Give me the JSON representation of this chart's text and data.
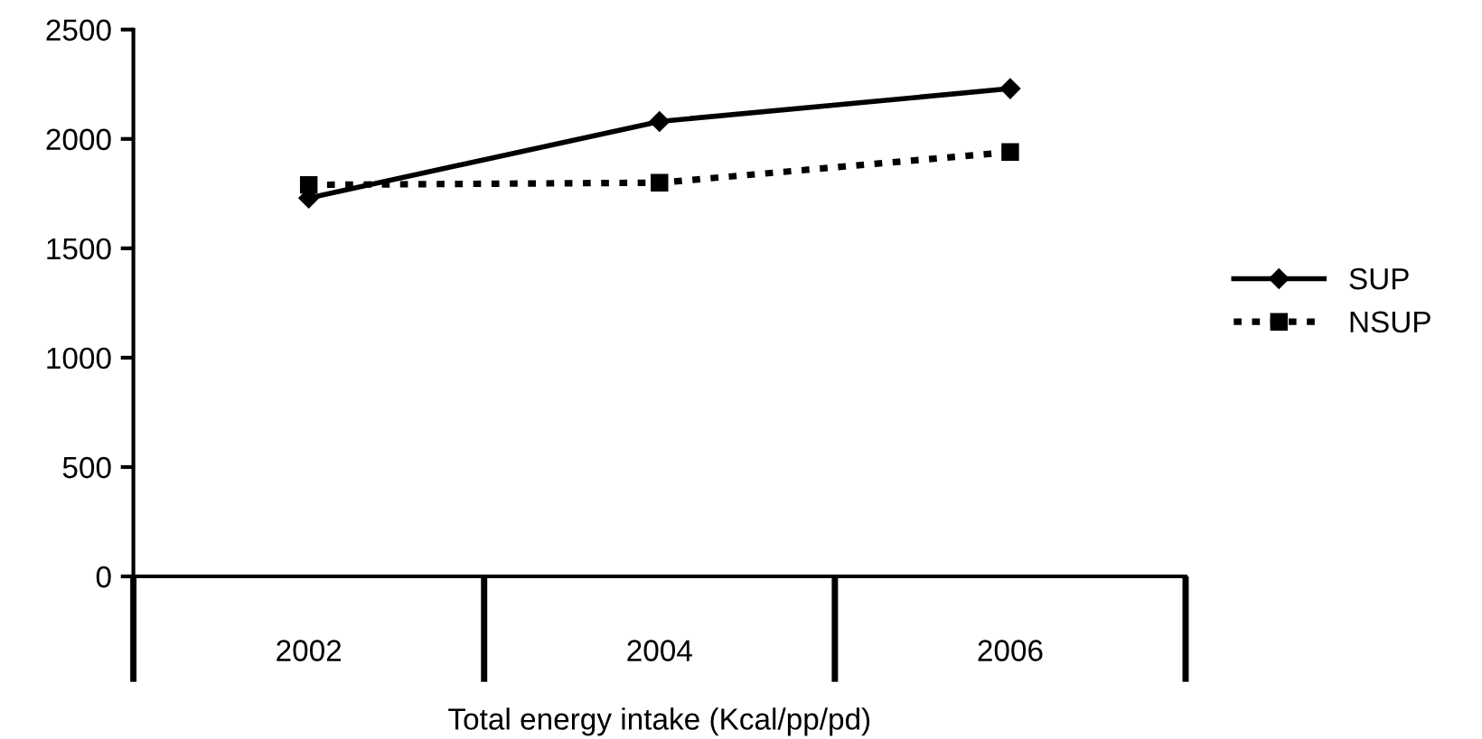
{
  "chart_data": {
    "type": "line",
    "xlabel": "Total energy intake (Kcal/pp/pd)",
    "categories": [
      "2002",
      "2004",
      "2006"
    ],
    "series": [
      {
        "name": "SUP",
        "color": "#000000",
        "values": [
          1730,
          2080,
          2230
        ],
        "marker": "diamond",
        "line_style": "solid"
      },
      {
        "name": "NSUP",
        "color": "#000000",
        "values": [
          1790,
          1800,
          1940
        ],
        "marker": "square",
        "line_style": "dotted"
      }
    ],
    "ylim": [
      0,
      2500
    ],
    "yticks": [
      0,
      500,
      1000,
      1500,
      2000,
      2500
    ],
    "grid": false,
    "legend": "right"
  }
}
